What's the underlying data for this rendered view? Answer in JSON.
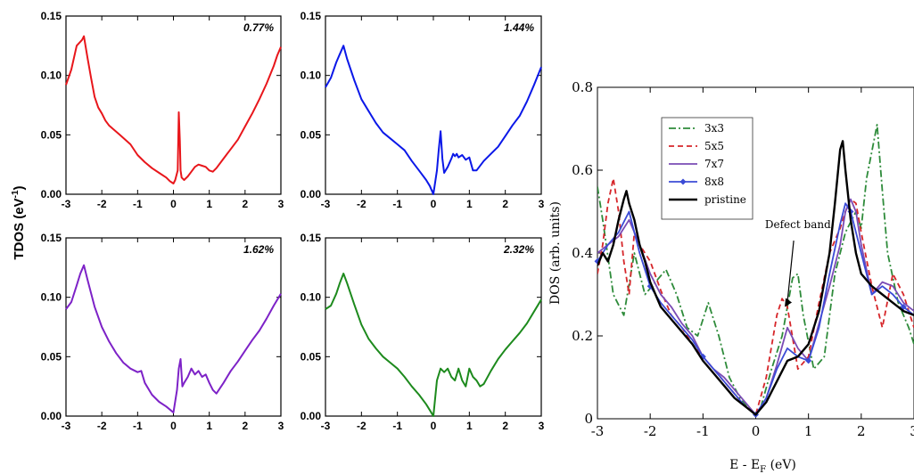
{
  "tdos_ylabel": "TDOS (eV",
  "tdos_ylabel_sup": "-1",
  "tdos_ylabel_end": ")",
  "chart_data": [
    {
      "type": "line",
      "annotation": "0.77%",
      "color": "#e8161b",
      "xlim": [
        -3,
        3
      ],
      "ylim": [
        0,
        0.15
      ],
      "xticks": [
        "-3",
        "-2",
        "-1",
        "0",
        "1",
        "2",
        "3"
      ],
      "yticks": [
        "0.00",
        "0.05",
        "0.10",
        "0.15"
      ],
      "x": [
        -3.0,
        -2.85,
        -2.7,
        -2.55,
        -2.5,
        -2.4,
        -2.3,
        -2.2,
        -2.1,
        -2.0,
        -1.9,
        -1.8,
        -1.5,
        -1.2,
        -1.0,
        -0.8,
        -0.6,
        -0.4,
        -0.2,
        -0.1,
        0.0,
        0.05,
        0.12,
        0.15,
        0.18,
        0.2,
        0.23,
        0.3,
        0.4,
        0.5,
        0.6,
        0.7,
        0.8,
        0.9,
        1.0,
        1.1,
        1.2,
        1.4,
        1.6,
        1.8,
        2.0,
        2.2,
        2.4,
        2.6,
        2.8,
        2.9,
        3.0
      ],
      "y": [
        0.092,
        0.105,
        0.125,
        0.13,
        0.133,
        0.115,
        0.098,
        0.082,
        0.073,
        0.068,
        0.062,
        0.058,
        0.05,
        0.042,
        0.033,
        0.027,
        0.022,
        0.018,
        0.014,
        0.011,
        0.009,
        0.012,
        0.02,
        0.069,
        0.045,
        0.02,
        0.014,
        0.012,
        0.015,
        0.019,
        0.023,
        0.025,
        0.024,
        0.023,
        0.02,
        0.019,
        0.022,
        0.03,
        0.038,
        0.046,
        0.057,
        0.068,
        0.08,
        0.093,
        0.108,
        0.117,
        0.124
      ]
    },
    {
      "type": "line",
      "annotation": "1.44%",
      "color": "#0b18e8",
      "xlim": [
        -3,
        3
      ],
      "ylim": [
        0,
        0.15
      ],
      "xticks": [
        "-3",
        "-2",
        "-1",
        "0",
        "1",
        "2",
        "3"
      ],
      "yticks": [
        "0.00",
        "0.05",
        "0.10",
        "0.15"
      ],
      "x": [
        -3.0,
        -2.85,
        -2.7,
        -2.6,
        -2.5,
        -2.4,
        -2.2,
        -2.0,
        -1.8,
        -1.6,
        -1.4,
        -1.2,
        -1.0,
        -0.8,
        -0.6,
        -0.4,
        -0.2,
        -0.1,
        0.0,
        0.1,
        0.15,
        0.2,
        0.25,
        0.3,
        0.4,
        0.5,
        0.55,
        0.6,
        0.65,
        0.7,
        0.8,
        0.9,
        1.0,
        1.1,
        1.2,
        1.4,
        1.6,
        1.8,
        2.0,
        2.2,
        2.4,
        2.6,
        2.8,
        3.0
      ],
      "y": [
        0.09,
        0.098,
        0.111,
        0.118,
        0.125,
        0.114,
        0.096,
        0.08,
        0.07,
        0.06,
        0.052,
        0.047,
        0.042,
        0.037,
        0.028,
        0.02,
        0.012,
        0.007,
        0.0,
        0.02,
        0.038,
        0.053,
        0.03,
        0.018,
        0.023,
        0.03,
        0.034,
        0.032,
        0.034,
        0.031,
        0.033,
        0.029,
        0.031,
        0.02,
        0.02,
        0.028,
        0.034,
        0.04,
        0.049,
        0.058,
        0.066,
        0.078,
        0.092,
        0.107
      ]
    },
    {
      "type": "line",
      "annotation": "1.62%",
      "color": "#7d22c7",
      "xlim": [
        -3,
        3
      ],
      "ylim": [
        0,
        0.15
      ],
      "xticks": [
        "-3",
        "-2",
        "-1",
        "0",
        "1",
        "2",
        "3"
      ],
      "yticks": [
        "0.00",
        "0.05",
        "0.10",
        "0.15"
      ],
      "x": [
        -3.0,
        -2.85,
        -2.7,
        -2.6,
        -2.5,
        -2.4,
        -2.2,
        -2.0,
        -1.8,
        -1.6,
        -1.4,
        -1.2,
        -1.0,
        -0.9,
        -0.8,
        -0.6,
        -0.4,
        -0.2,
        0.0,
        0.1,
        0.15,
        0.2,
        0.25,
        0.3,
        0.4,
        0.5,
        0.6,
        0.7,
        0.8,
        0.9,
        1.0,
        1.1,
        1.2,
        1.4,
        1.6,
        1.8,
        2.0,
        2.2,
        2.4,
        2.6,
        2.8,
        3.0
      ],
      "y": [
        0.09,
        0.096,
        0.11,
        0.12,
        0.127,
        0.115,
        0.092,
        0.075,
        0.063,
        0.053,
        0.045,
        0.04,
        0.037,
        0.038,
        0.028,
        0.018,
        0.012,
        0.008,
        0.003,
        0.022,
        0.04,
        0.048,
        0.025,
        0.028,
        0.033,
        0.04,
        0.035,
        0.038,
        0.033,
        0.035,
        0.028,
        0.022,
        0.019,
        0.028,
        0.038,
        0.046,
        0.055,
        0.064,
        0.072,
        0.082,
        0.093,
        0.103
      ]
    },
    {
      "type": "line",
      "annotation": "2.32%",
      "color": "#1d8a1d",
      "xlim": [
        -3,
        3
      ],
      "ylim": [
        0,
        0.15
      ],
      "xticks": [
        "-3",
        "-2",
        "-1",
        "0",
        "1",
        "2",
        "3"
      ],
      "yticks": [
        "0.00",
        "0.05",
        "0.10",
        "0.15"
      ],
      "x": [
        -3.0,
        -2.85,
        -2.7,
        -2.6,
        -2.5,
        -2.4,
        -2.2,
        -2.0,
        -1.8,
        -1.6,
        -1.4,
        -1.2,
        -1.0,
        -0.8,
        -0.6,
        -0.4,
        -0.2,
        -0.1,
        0.0,
        0.1,
        0.2,
        0.3,
        0.4,
        0.5,
        0.6,
        0.7,
        0.8,
        0.9,
        1.0,
        1.1,
        1.2,
        1.3,
        1.4,
        1.6,
        1.8,
        2.0,
        2.2,
        2.4,
        2.6,
        2.8,
        3.0
      ],
      "y": [
        0.09,
        0.093,
        0.103,
        0.112,
        0.12,
        0.112,
        0.094,
        0.077,
        0.065,
        0.057,
        0.05,
        0.045,
        0.04,
        0.033,
        0.025,
        0.018,
        0.01,
        0.005,
        0.0,
        0.03,
        0.04,
        0.037,
        0.04,
        0.033,
        0.03,
        0.04,
        0.03,
        0.025,
        0.04,
        0.033,
        0.03,
        0.025,
        0.027,
        0.038,
        0.048,
        0.056,
        0.063,
        0.07,
        0.078,
        0.088,
        0.098
      ]
    },
    {
      "type": "line",
      "xlabel": "E - E",
      "xlabel_sub": "F",
      "xlabel_unit": " (eV)",
      "ylabel": "DOS (arb. units)",
      "xlim": [
        -3,
        3
      ],
      "ylim": [
        0,
        0.8
      ],
      "xticks": [
        "-3",
        "-2",
        "-1",
        "0",
        "1",
        "2",
        "3"
      ],
      "yticks": [
        "0",
        "0.2",
        "0.4",
        "0.6",
        "0.8"
      ],
      "annotation": "Defect band",
      "annotation_point": [
        0.55,
        0.27
      ],
      "legend_position": "top-left",
      "series": [
        {
          "name": "3x3",
          "color": "#2e8b3a",
          "dash": "dashdot",
          "x": [
            -3.0,
            -2.9,
            -2.7,
            -2.5,
            -2.3,
            -2.1,
            -1.9,
            -1.7,
            -1.5,
            -1.3,
            -1.1,
            -0.9,
            -0.7,
            -0.5,
            -0.3,
            -0.1,
            0.0,
            0.1,
            0.3,
            0.5,
            0.7,
            0.8,
            0.9,
            1.1,
            1.3,
            1.5,
            1.7,
            1.9,
            2.0,
            2.1,
            2.3,
            2.4,
            2.5,
            2.7,
            2.9,
            3.0
          ],
          "y": [
            0.56,
            0.48,
            0.3,
            0.25,
            0.4,
            0.3,
            0.33,
            0.36,
            0.3,
            0.22,
            0.2,
            0.28,
            0.2,
            0.1,
            0.05,
            0.02,
            0.01,
            0.03,
            0.12,
            0.2,
            0.34,
            0.35,
            0.25,
            0.12,
            0.15,
            0.35,
            0.45,
            0.5,
            0.46,
            0.58,
            0.71,
            0.55,
            0.4,
            0.28,
            0.22,
            0.18
          ]
        },
        {
          "name": "5x5",
          "color": "#d6262a",
          "dash": "dashed",
          "x": [
            -3.0,
            -2.9,
            -2.8,
            -2.7,
            -2.6,
            -2.5,
            -2.4,
            -2.3,
            -2.2,
            -2.0,
            -1.8,
            -1.6,
            -1.4,
            -1.2,
            -1.0,
            -0.8,
            -0.6,
            -0.4,
            -0.2,
            -0.1,
            0.0,
            0.2,
            0.4,
            0.5,
            0.6,
            0.8,
            1.0,
            1.2,
            1.4,
            1.6,
            1.7,
            1.8,
            1.9,
            2.0,
            2.2,
            2.4,
            2.6,
            2.8,
            3.0
          ],
          "y": [
            0.35,
            0.42,
            0.52,
            0.58,
            0.5,
            0.38,
            0.3,
            0.45,
            0.42,
            0.38,
            0.31,
            0.25,
            0.22,
            0.18,
            0.15,
            0.12,
            0.09,
            0.06,
            0.03,
            0.02,
            0.01,
            0.1,
            0.25,
            0.29,
            0.27,
            0.12,
            0.15,
            0.28,
            0.4,
            0.46,
            0.5,
            0.53,
            0.52,
            0.45,
            0.32,
            0.22,
            0.35,
            0.3,
            0.22
          ]
        },
        {
          "name": "7x7",
          "color": "#7a4bb5",
          "dash": "solid",
          "x": [
            -3.0,
            -2.8,
            -2.6,
            -2.4,
            -2.2,
            -2.0,
            -1.8,
            -1.6,
            -1.4,
            -1.2,
            -1.0,
            -0.8,
            -0.6,
            -0.4,
            -0.2,
            0.0,
            0.2,
            0.4,
            0.6,
            0.8,
            1.0,
            1.2,
            1.4,
            1.6,
            1.7,
            1.8,
            1.9,
            2.0,
            2.2,
            2.4,
            2.6,
            2.8,
            3.0
          ],
          "y": [
            0.4,
            0.42,
            0.44,
            0.48,
            0.42,
            0.35,
            0.3,
            0.27,
            0.23,
            0.2,
            0.15,
            0.12,
            0.1,
            0.07,
            0.04,
            0.01,
            0.05,
            0.13,
            0.22,
            0.17,
            0.14,
            0.23,
            0.32,
            0.42,
            0.5,
            0.53,
            0.5,
            0.42,
            0.3,
            0.33,
            0.32,
            0.28,
            0.26
          ]
        },
        {
          "name": "8x8",
          "color": "#3b4bd6",
          "dash": "solid",
          "marker": "diamond",
          "x": [
            -3.0,
            -2.8,
            -2.6,
            -2.4,
            -2.2,
            -2.0,
            -1.8,
            -1.6,
            -1.4,
            -1.2,
            -1.0,
            -0.8,
            -0.6,
            -0.4,
            -0.2,
            0.0,
            0.2,
            0.4,
            0.6,
            0.8,
            1.0,
            1.2,
            1.4,
            1.6,
            1.7,
            1.8,
            2.0,
            2.2,
            2.4,
            2.6,
            2.8,
            3.0
          ],
          "y": [
            0.38,
            0.42,
            0.45,
            0.5,
            0.4,
            0.32,
            0.28,
            0.25,
            0.22,
            0.19,
            0.15,
            0.12,
            0.09,
            0.06,
            0.03,
            0.01,
            0.05,
            0.12,
            0.17,
            0.15,
            0.14,
            0.22,
            0.35,
            0.47,
            0.52,
            0.5,
            0.4,
            0.3,
            0.32,
            0.3,
            0.27,
            0.25
          ]
        },
        {
          "name": "pristine",
          "color": "#000000",
          "dash": "solid",
          "width": 2.4,
          "x": [
            -3.0,
            -2.9,
            -2.8,
            -2.7,
            -2.6,
            -2.5,
            -2.45,
            -2.4,
            -2.3,
            -2.2,
            -2.1,
            -2.0,
            -1.9,
            -1.8,
            -1.6,
            -1.4,
            -1.2,
            -1.0,
            -0.8,
            -0.6,
            -0.4,
            -0.2,
            0.0,
            0.2,
            0.4,
            0.6,
            0.8,
            1.0,
            1.2,
            1.4,
            1.5,
            1.6,
            1.65,
            1.7,
            1.8,
            1.9,
            2.0,
            2.2,
            2.4,
            2.6,
            2.8,
            3.0
          ],
          "y": [
            0.37,
            0.4,
            0.38,
            0.42,
            0.48,
            0.53,
            0.55,
            0.52,
            0.48,
            0.42,
            0.38,
            0.33,
            0.3,
            0.27,
            0.24,
            0.21,
            0.18,
            0.14,
            0.11,
            0.08,
            0.05,
            0.03,
            0.01,
            0.04,
            0.09,
            0.14,
            0.15,
            0.18,
            0.26,
            0.4,
            0.52,
            0.65,
            0.67,
            0.6,
            0.48,
            0.4,
            0.35,
            0.32,
            0.3,
            0.28,
            0.26,
            0.25
          ]
        }
      ]
    }
  ]
}
